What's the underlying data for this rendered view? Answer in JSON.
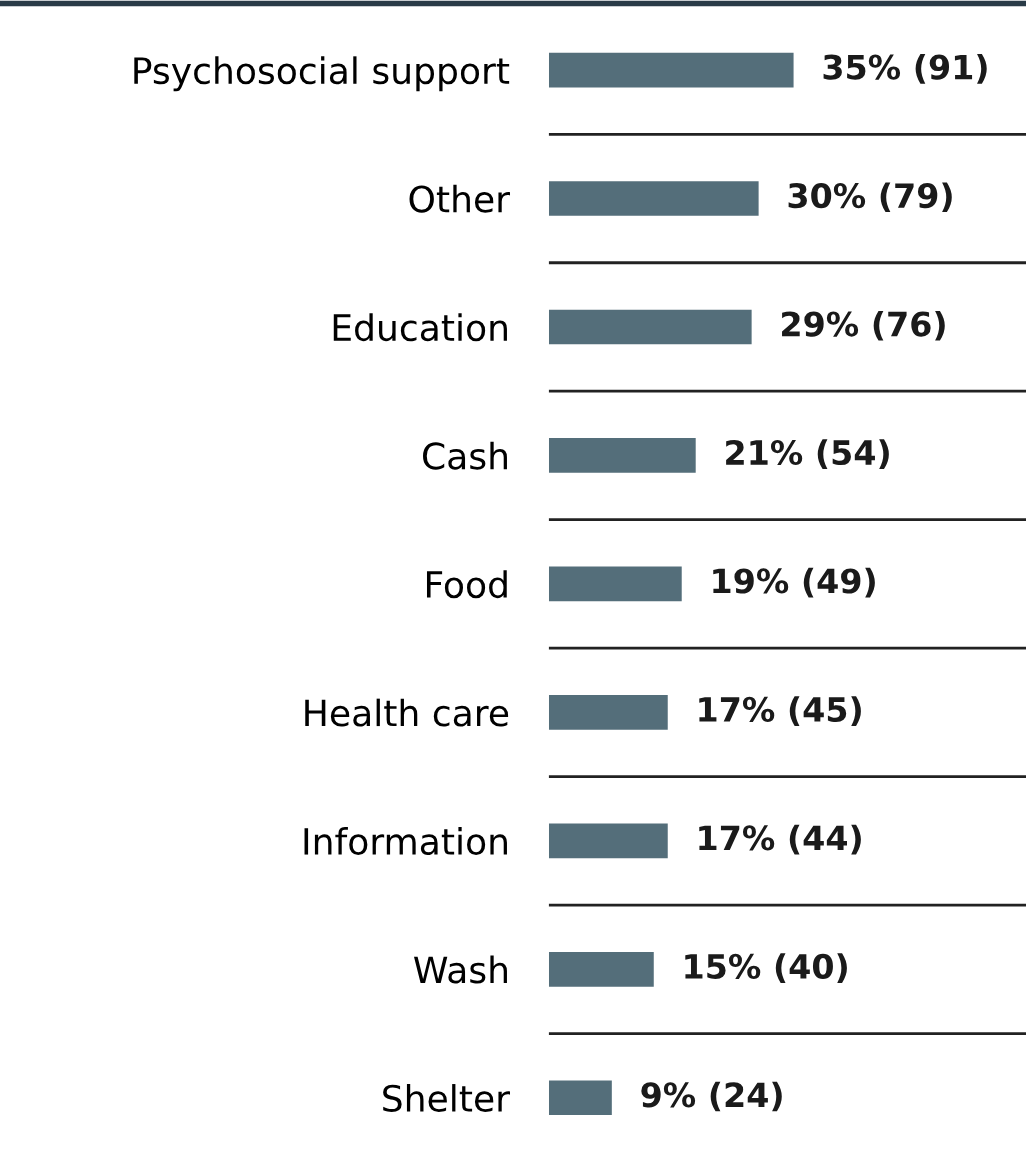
{
  "chart_data": {
    "type": "bar",
    "orientation": "horizontal",
    "categories": [
      "Psychosocial support",
      "Other",
      "Education",
      "Cash",
      "Food",
      "Health care",
      "Information",
      "Wash",
      "Shelter"
    ],
    "values": [
      35,
      30,
      29,
      21,
      19,
      17,
      17,
      15,
      9
    ],
    "value_labels": [
      "35% (91)",
      "30% (79)",
      "29% (76)",
      "21% (54)",
      "19% (49)",
      "17% (45)",
      "17% (44)",
      "15% (40)",
      "9% (24)"
    ],
    "color": "#546e7a",
    "tick_labels": "y",
    "grid": false,
    "legend": false
  }
}
